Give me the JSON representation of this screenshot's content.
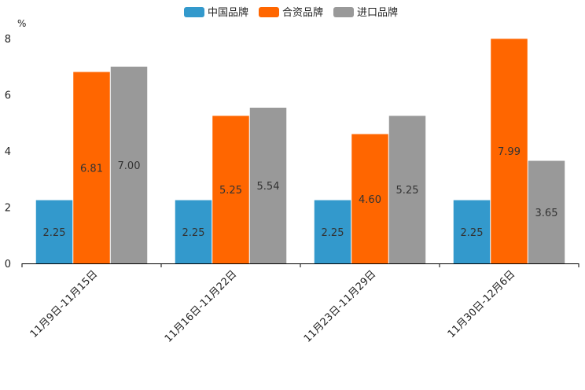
{
  "chart_data": {
    "type": "bar",
    "ylabel": "%",
    "ylim": [
      0,
      8
    ],
    "yticks": [
      "0",
      "2",
      "4",
      "6",
      "8"
    ],
    "categories": [
      "11月9日-11月15日",
      "11月16日-11月22日",
      "11月23日-11月29日",
      "11月30日-12月6日"
    ],
    "series": [
      {
        "name": "中国品牌",
        "color": "#3399cc",
        "values": [
          2.25,
          2.25,
          2.25,
          2.25
        ],
        "labels": [
          "2.25",
          "2.25",
          "2.25",
          "2.25"
        ]
      },
      {
        "name": "合资品牌",
        "color": "#ff6600",
        "values": [
          6.81,
          5.25,
          4.6,
          7.99
        ],
        "labels": [
          "6.81",
          "5.25",
          "4.60",
          "7.99"
        ]
      },
      {
        "name": "进口品牌",
        "color": "#999999",
        "values": [
          7.0,
          5.54,
          5.25,
          3.65
        ],
        "labels": [
          "7.00",
          "5.54",
          "5.25",
          "3.65"
        ]
      }
    ],
    "legend_position": "top-center"
  }
}
